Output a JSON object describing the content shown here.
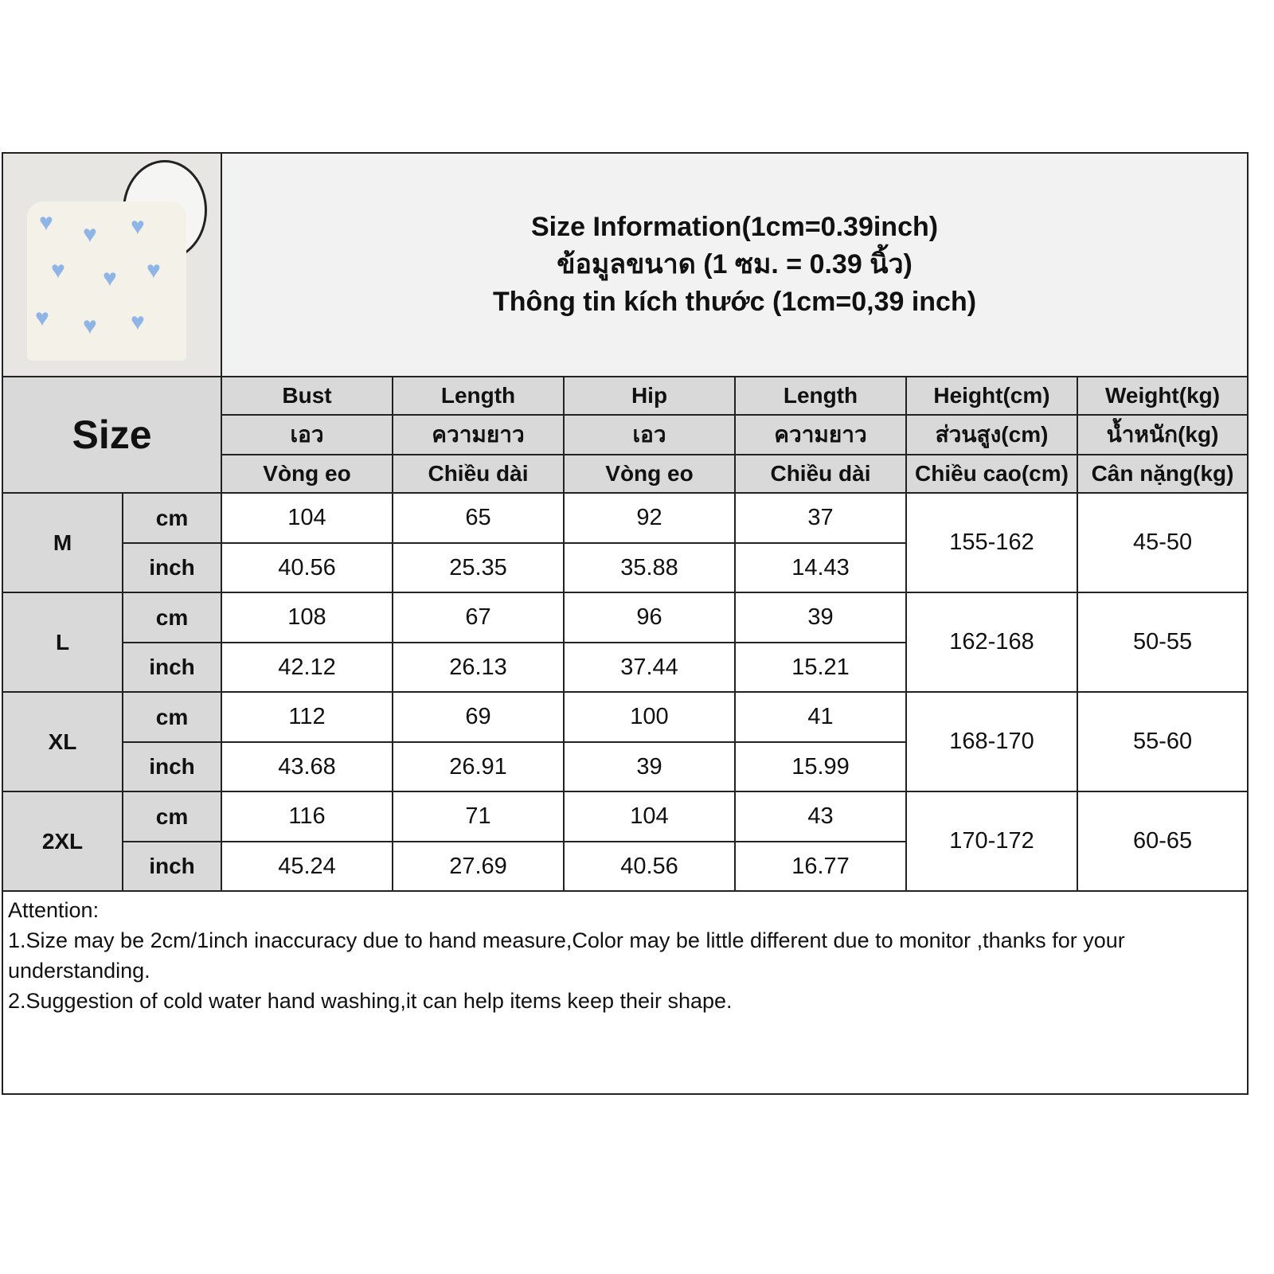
{
  "title": {
    "line1": "Size Information(1cm=0.39inch)",
    "line2": "ข้อมูลขนาด (1 ซม. = 0.39 นิ้ว)",
    "line3": "Thông tin kích thước (1cm=0,39 inch)"
  },
  "size_label": "Size",
  "headers": [
    {
      "en": "Bust",
      "th": "เอว",
      "vi": "Vòng eo"
    },
    {
      "en": "Length",
      "th": "ความยาว",
      "vi": "Chiều dài"
    },
    {
      "en": "Hip",
      "th": "เอว",
      "vi": "Vòng eo"
    },
    {
      "en": "Length",
      "th": "ความยาว",
      "vi": "Chiều dài"
    },
    {
      "en": "Height(cm)",
      "th": "ส่วนสูง(cm)",
      "vi": "Chiều cao(cm)"
    },
    {
      "en": "Weight(kg)",
      "th": "น้ำหนัก(kg)",
      "vi": "Cân nặng(kg)"
    }
  ],
  "units": {
    "cm": "cm",
    "inch": "inch"
  },
  "rows": [
    {
      "size": "M",
      "cm": [
        "104",
        "65",
        "92",
        "37"
      ],
      "inch": [
        "40.56",
        "25.35",
        "35.88",
        "14.43"
      ],
      "height": "155-162",
      "weight": "45-50"
    },
    {
      "size": "L",
      "cm": [
        "108",
        "67",
        "96",
        "39"
      ],
      "inch": [
        "42.12",
        "26.13",
        "37.44",
        "15.21"
      ],
      "height": "162-168",
      "weight": "50-55"
    },
    {
      "size": "XL",
      "cm": [
        "112",
        "69",
        "100",
        "41"
      ],
      "inch": [
        "43.68",
        "26.91",
        "39",
        "15.99"
      ],
      "height": "168-170",
      "weight": "55-60"
    },
    {
      "size": "2XL",
      "cm": [
        "116",
        "71",
        "104",
        "43"
      ],
      "inch": [
        "45.24",
        "27.69",
        "40.56",
        "16.77"
      ],
      "height": "170-172",
      "weight": "60-65"
    }
  ],
  "notes": {
    "heading": "Attention:",
    "items": [
      "1.Size may be 2cm/1inch inaccuracy due to hand measure,Color may be little different due to monitor ,thanks for your understanding.",
      "2.Suggestion of cold water hand washing,it can help items keep their shape."
    ]
  }
}
